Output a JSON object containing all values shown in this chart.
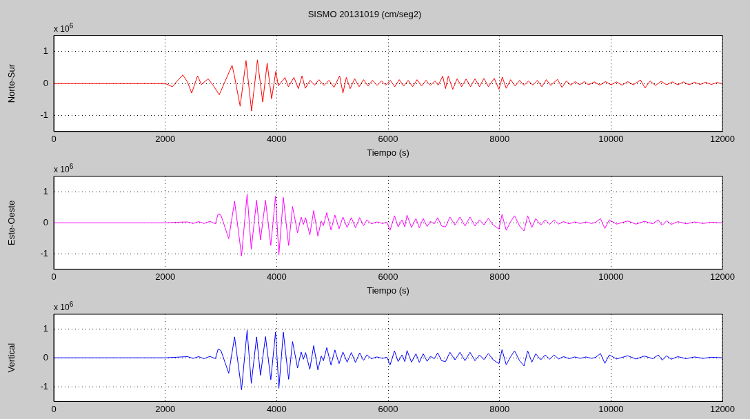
{
  "chart_data": [
    {
      "type": "line",
      "title": "SISMO 20131019 (cm/seg2)",
      "xlabel": "Tiempo (s)",
      "ylabel": "Norte-Sur",
      "annotations": [
        "x 10$^{6}$"
      ],
      "xlim": [
        0,
        12000
      ],
      "xticks": [
        0,
        2000,
        4000,
        6000,
        8000,
        10000,
        12000
      ],
      "ylim": [
        -1.5,
        1.5
      ],
      "yticks": [
        -1,
        0,
        1
      ],
      "grid": true,
      "legend": false,
      "marker": "none",
      "line_style": "solid",
      "series": [
        {
          "color": "#ff0000",
          "x": [
            0,
            2000,
            2130,
            2200,
            2315,
            2400,
            2475,
            2580,
            2650,
            2770,
            2865,
            2970,
            3095,
            3200,
            3235,
            3345,
            3450,
            3550,
            3655,
            3750,
            3830,
            3910,
            3985,
            4030,
            4150,
            4210,
            4310,
            4390,
            4455,
            4515,
            4600,
            4680,
            4760,
            4850,
            4940,
            5030,
            5130,
            5190,
            5250,
            5320,
            5400,
            5480,
            5560,
            5640,
            5720,
            5800,
            5880,
            5960,
            6040,
            6120,
            6200,
            6280,
            6360,
            6440,
            6520,
            6600,
            6680,
            6760,
            6840,
            6900,
            6980,
            7030,
            7080,
            7160,
            7240,
            7320,
            7400,
            7480,
            7560,
            7640,
            7720,
            7800,
            7905,
            7990,
            8050,
            8120,
            8200,
            8280,
            8360,
            8440,
            8520,
            8600,
            8680,
            8760,
            8840,
            8920,
            9040,
            9120,
            9200,
            9280,
            9360,
            9440,
            9520,
            9600,
            9700,
            9800,
            9900,
            10000,
            10100,
            10200,
            10300,
            10400,
            10530,
            10610,
            10700,
            10800,
            10900,
            11000,
            11100,
            11200,
            11300,
            11400,
            11500,
            11600,
            11700,
            11800,
            11900,
            12000
          ],
          "values": [
            0,
            0,
            -0.1,
            0.05,
            0.27,
            0.05,
            -0.3,
            0.24,
            -0.03,
            0.15,
            -0.07,
            -0.35,
            0.15,
            0.57,
            0.3,
            -0.71,
            0.72,
            -0.86,
            0.74,
            -0.58,
            0.64,
            -0.48,
            0.38,
            -0.07,
            0.19,
            -0.1,
            0.19,
            -0.16,
            0.24,
            -0.15,
            0.1,
            -0.05,
            0.12,
            -0.06,
            0.1,
            -0.12,
            0.24,
            -0.3,
            0.19,
            -0.16,
            0.15,
            -0.1,
            0.12,
            -0.08,
            0.1,
            -0.06,
            0.08,
            -0.05,
            0.1,
            -0.1,
            0.12,
            -0.08,
            0.1,
            -0.1,
            0.12,
            -0.08,
            0.1,
            -0.06,
            0.08,
            -0.05,
            0.23,
            -0.16,
            0.23,
            -0.18,
            0.15,
            -0.1,
            0.14,
            -0.1,
            0.15,
            -0.1,
            0.16,
            -0.1,
            0.16,
            -0.18,
            0.2,
            -0.15,
            0.12,
            -0.08,
            0.1,
            -0.06,
            0.08,
            -0.05,
            0.1,
            -0.1,
            0.12,
            -0.06,
            0.13,
            -0.12,
            0.08,
            -0.05,
            0.06,
            -0.04,
            0.06,
            -0.04,
            0.05,
            -0.05,
            0.06,
            -0.04,
            0.05,
            -0.05,
            0.06,
            -0.04,
            0.11,
            -0.14,
            0.08,
            -0.06,
            0.07,
            -0.04,
            0.05,
            -0.04,
            0.05,
            -0.04,
            0.04,
            -0.03,
            0.04,
            -0.03,
            0.03,
            0
          ]
        }
      ]
    },
    {
      "type": "line",
      "xlabel": "Tiempo (s)",
      "ylabel": "Este-Oeste",
      "annotations": [
        "x 10$^{6}$"
      ],
      "xlim": [
        0,
        12000
      ],
      "xticks": [
        0,
        2000,
        4000,
        6000,
        8000,
        10000,
        12000
      ],
      "ylim": [
        -1.5,
        1.5
      ],
      "yticks": [
        -1,
        0,
        1
      ],
      "grid": true,
      "legend": false,
      "marker": "none",
      "line_style": "solid",
      "series": [
        {
          "color": "#ff00ff",
          "x": [
            0,
            2000,
            2200,
            2400,
            2500,
            2600,
            2700,
            2800,
            2900,
            2950,
            3000,
            3140,
            3245,
            3370,
            3470,
            3545,
            3640,
            3710,
            3800,
            3895,
            3980,
            4040,
            4120,
            4215,
            4285,
            4375,
            4440,
            4480,
            4520,
            4595,
            4665,
            4740,
            4800,
            4840,
            4900,
            4975,
            5045,
            5120,
            5190,
            5265,
            5340,
            5415,
            5490,
            5560,
            5620,
            5700,
            5800,
            5900,
            5980,
            6035,
            6115,
            6180,
            6250,
            6300,
            6340,
            6420,
            6500,
            6560,
            6630,
            6700,
            6760,
            6830,
            6890,
            6960,
            7030,
            7110,
            7200,
            7290,
            7380,
            7470,
            7560,
            7640,
            7720,
            7800,
            7880,
            7990,
            8045,
            8120,
            8200,
            8270,
            8360,
            8440,
            8505,
            8580,
            8650,
            8740,
            8820,
            8900,
            8980,
            9060,
            9150,
            9250,
            9350,
            9450,
            9550,
            9650,
            9730,
            9810,
            9890,
            9970,
            10100,
            10300,
            10450,
            10600,
            10750,
            10850,
            10920,
            11000,
            11080,
            11200,
            11350,
            11500,
            11650,
            11800,
            12000
          ],
          "values": [
            0,
            0,
            0.02,
            0.03,
            -0.02,
            0.04,
            -0.02,
            0.05,
            -0.03,
            0.29,
            0.25,
            -0.51,
            0.7,
            -1.07,
            0.93,
            -0.85,
            0.73,
            -0.55,
            0.73,
            -0.73,
            0.86,
            -1.04,
            0.82,
            -0.73,
            0.53,
            -0.32,
            0.19,
            -0.05,
            0.17,
            -0.39,
            0.4,
            -0.43,
            0.06,
            -0.09,
            0.33,
            -0.23,
            0.25,
            -0.19,
            0.19,
            -0.15,
            0.17,
            -0.16,
            0.17,
            -0.09,
            0.1,
            -0.03,
            0.03,
            -0.02,
            0.02,
            -0.24,
            0.23,
            -0.13,
            0.1,
            -0.13,
            0.25,
            -0.15,
            0.14,
            -0.16,
            0.14,
            -0.12,
            0.05,
            -0.03,
            0.17,
            -0.1,
            -0.13,
            0.19,
            -0.07,
            0.19,
            -0.1,
            0.19,
            -0.1,
            0.1,
            -0.06,
            0.15,
            -0.06,
            -0.2,
            0.27,
            -0.24,
            0.04,
            0.23,
            -0.1,
            -0.26,
            0.23,
            -0.15,
            0.14,
            -0.07,
            0.1,
            -0.05,
            0.1,
            -0.04,
            0.04,
            -0.03,
            0.03,
            -0.02,
            0.03,
            -0.02,
            0.02,
            0.14,
            -0.18,
            0.1,
            -0.04,
            0.06,
            -0.04,
            0.05,
            -0.03,
            0.1,
            -0.08,
            0.07,
            -0.05,
            0.04,
            -0.03,
            0.03,
            -0.02,
            0.02,
            0
          ]
        }
      ]
    },
    {
      "type": "line",
      "ylabel": "Vertical",
      "annotations": [
        "x 10$^{6}$"
      ],
      "xlim": [
        0,
        12000
      ],
      "xticks": [
        0,
        2000,
        4000,
        6000,
        8000,
        10000,
        12000
      ],
      "ylim": [
        -1.5,
        1.5
      ],
      "yticks": [
        -1,
        0,
        1
      ],
      "grid": true,
      "legend": false,
      "marker": "none",
      "line_style": "solid",
      "series": [
        {
          "color": "#0000ff",
          "x": [
            0,
            2000,
            2200,
            2400,
            2500,
            2600,
            2700,
            2800,
            2900,
            2950,
            3000,
            3140,
            3245,
            3370,
            3470,
            3545,
            3640,
            3710,
            3800,
            3895,
            3980,
            4040,
            4120,
            4215,
            4285,
            4375,
            4440,
            4480,
            4520,
            4595,
            4665,
            4740,
            4800,
            4840,
            4900,
            4975,
            5045,
            5120,
            5190,
            5265,
            5340,
            5415,
            5490,
            5560,
            5620,
            5700,
            5800,
            5900,
            5980,
            6035,
            6115,
            6180,
            6250,
            6300,
            6340,
            6420,
            6500,
            6560,
            6630,
            6700,
            6760,
            6830,
            6890,
            6960,
            7030,
            7110,
            7200,
            7290,
            7380,
            7470,
            7560,
            7640,
            7720,
            7800,
            7880,
            7990,
            8045,
            8120,
            8200,
            8270,
            8360,
            8440,
            8505,
            8580,
            8650,
            8740,
            8820,
            8900,
            8980,
            9060,
            9150,
            9250,
            9350,
            9450,
            9550,
            9650,
            9730,
            9810,
            9890,
            9970,
            10100,
            10300,
            10450,
            10600,
            10750,
            10850,
            10920,
            11000,
            11080,
            11200,
            11350,
            11500,
            11650,
            11800,
            12000
          ],
          "values": [
            0,
            0,
            0.02,
            0.04,
            -0.02,
            0.04,
            -0.03,
            0.05,
            -0.03,
            0.3,
            0.25,
            -0.53,
            0.72,
            -1.1,
            0.95,
            -0.88,
            0.72,
            -0.6,
            0.73,
            -0.75,
            0.88,
            -1.05,
            0.88,
            -0.74,
            0.56,
            -0.35,
            0.2,
            -0.05,
            0.18,
            -0.4,
            0.42,
            -0.42,
            0.06,
            -0.1,
            0.35,
            -0.25,
            0.27,
            -0.2,
            0.2,
            -0.15,
            0.18,
            -0.16,
            0.17,
            -0.09,
            0.1,
            -0.03,
            0.03,
            -0.02,
            0.02,
            -0.25,
            0.24,
            -0.13,
            0.1,
            -0.13,
            0.25,
            -0.15,
            0.14,
            -0.16,
            0.14,
            -0.12,
            0.05,
            -0.03,
            0.17,
            -0.1,
            -0.13,
            0.19,
            -0.07,
            0.19,
            -0.1,
            0.19,
            -0.1,
            0.1,
            -0.06,
            0.15,
            -0.06,
            -0.2,
            0.28,
            -0.24,
            0.04,
            0.24,
            -0.1,
            -0.28,
            0.24,
            -0.15,
            0.14,
            -0.07,
            0.1,
            -0.05,
            0.1,
            -0.04,
            0.04,
            -0.03,
            0.03,
            -0.02,
            0.03,
            -0.02,
            0.02,
            0.15,
            -0.19,
            0.1,
            -0.04,
            0.07,
            -0.04,
            0.06,
            -0.03,
            0.1,
            -0.08,
            0.07,
            -0.05,
            0.04,
            -0.03,
            0.03,
            -0.02,
            0.02,
            0
          ]
        }
      ]
    }
  ]
}
